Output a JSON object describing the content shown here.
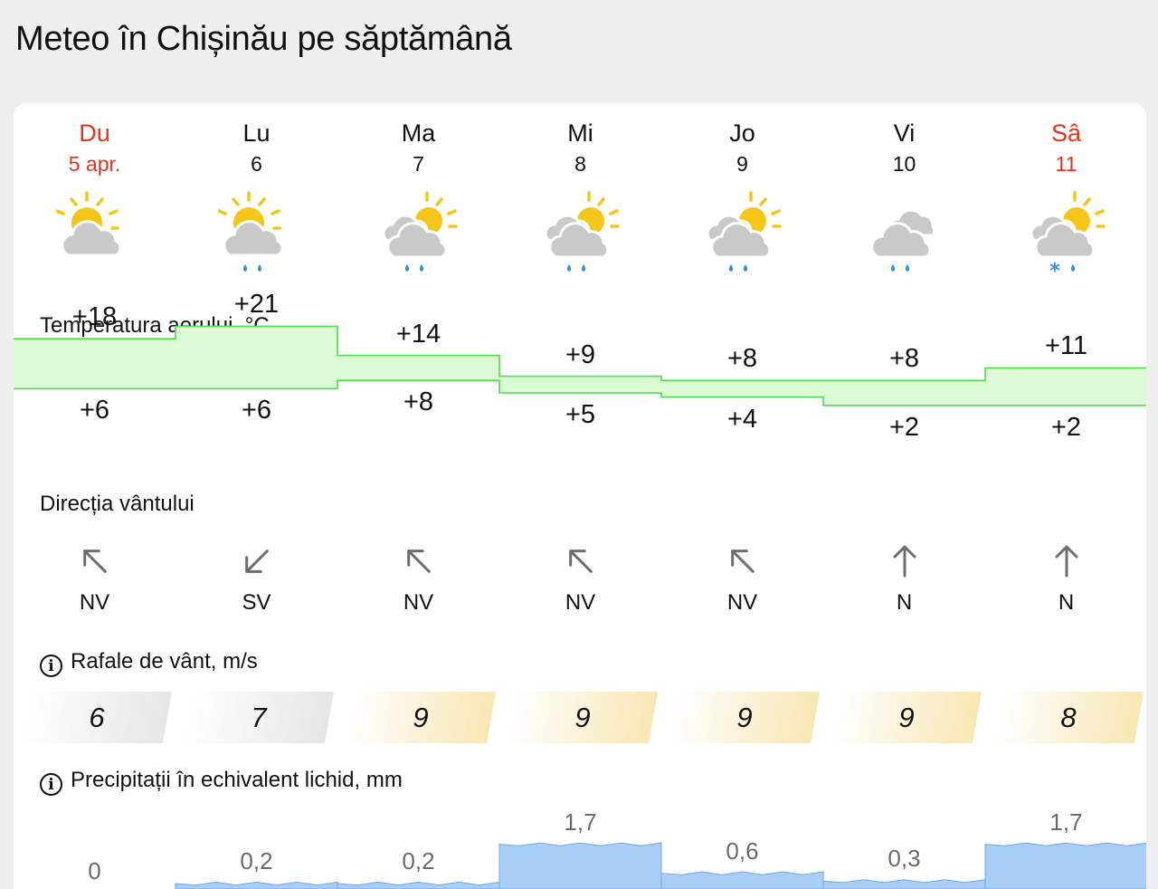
{
  "page_title": "Meteo în Chișinău pe săptămână",
  "days": [
    {
      "name": "Du",
      "date": "5 apr.",
      "weekend": true,
      "icon": "partly-cloudy-icon"
    },
    {
      "name": "Lu",
      "date": "6",
      "weekend": false,
      "icon": "partly-cloudy-rain-icon"
    },
    {
      "name": "Ma",
      "date": "7",
      "weekend": false,
      "icon": "cloudy-sun-rain-icon"
    },
    {
      "name": "Mi",
      "date": "8",
      "weekend": false,
      "icon": "cloudy-sun-rain-icon"
    },
    {
      "name": "Jo",
      "date": "9",
      "weekend": false,
      "icon": "cloudy-sun-rain-icon"
    },
    {
      "name": "Vi",
      "date": "10",
      "weekend": false,
      "icon": "overcast-rain-icon"
    },
    {
      "name": "Sâ",
      "date": "11",
      "weekend": true,
      "icon": "cloudy-sun-sleet-icon"
    }
  ],
  "temperature": {
    "label": "Temperatura aerului, °C",
    "max": [
      "+18",
      "+21",
      "+14",
      "+9",
      "+8",
      "+8",
      "+11"
    ],
    "min": [
      "+6",
      "+6",
      "+8",
      "+5",
      "+4",
      "+2",
      "+2"
    ],
    "max_values": [
      18,
      21,
      14,
      9,
      8,
      8,
      11
    ],
    "min_values": [
      6,
      6,
      8,
      5,
      4,
      2,
      2
    ]
  },
  "wind": {
    "label": "Direcția vântului",
    "directions": [
      "NV",
      "SV",
      "NV",
      "NV",
      "NV",
      "N",
      "N"
    ],
    "arrow_icons": [
      "arrow-down-right-icon",
      "arrow-up-right-icon",
      "arrow-down-right-icon",
      "arrow-down-right-icon",
      "arrow-down-right-icon",
      "arrow-down-icon",
      "arrow-down-icon"
    ]
  },
  "gusts": {
    "label": "Rafale de vânt, m/s",
    "values": [
      "6",
      "7",
      "9",
      "9",
      "9",
      "9",
      "8"
    ],
    "numeric": [
      6,
      7,
      9,
      9,
      9,
      9,
      8
    ]
  },
  "precipitation": {
    "label": "Precipitații în echivalent lichid, mm",
    "values": [
      "0",
      "0,2",
      "0,2",
      "1,7",
      "0,6",
      "0,3",
      "1,7"
    ],
    "numeric": [
      0,
      0.2,
      0.2,
      1.7,
      0.6,
      0.3,
      1.7
    ]
  },
  "colors": {
    "weekend": "#e8331d",
    "temp_fill": "#dcfbd4",
    "temp_line": "#4fdc4f",
    "precip_fill": "#a8cef5",
    "precip_line": "#6fa9e6",
    "sun": "#f5c518",
    "cloud": "#c9c9c9",
    "rain": "#2a8de0"
  }
}
